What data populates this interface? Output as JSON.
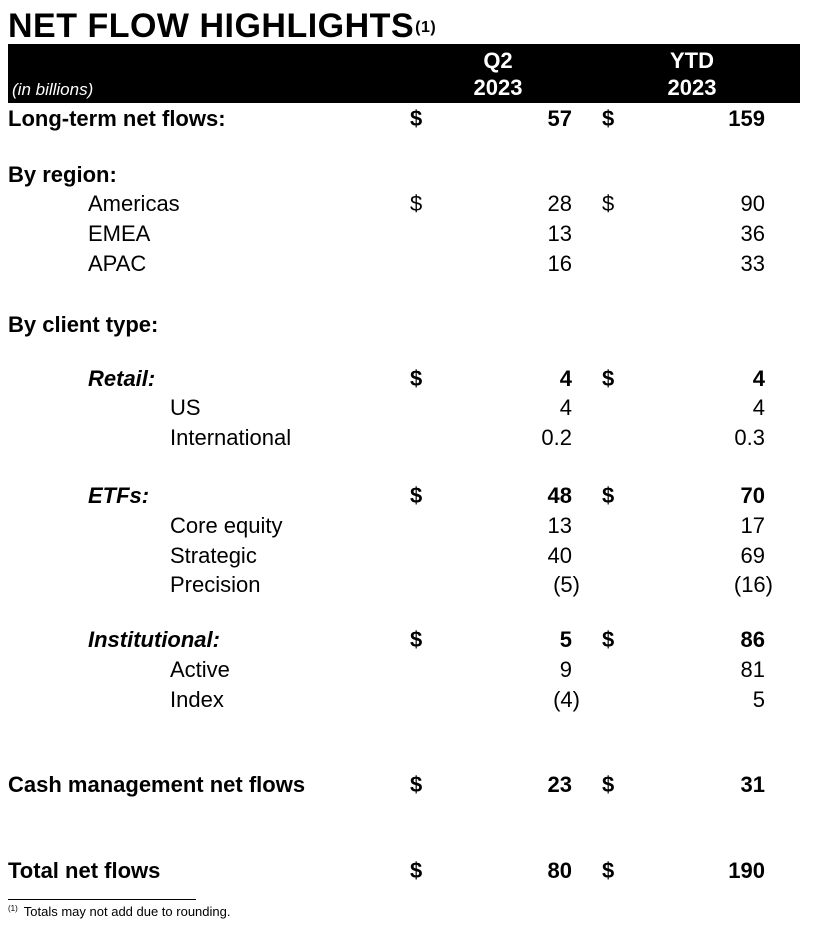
{
  "title": "NET FLOW HIGHLIGHTS",
  "title_footnote_mark": "(1)",
  "header": {
    "unit_label": "(in billions)",
    "col1_line1": "Q2",
    "col1_line2": "2023",
    "col2_line1": "YTD",
    "col2_line2": "2023"
  },
  "rows": {
    "long_term": {
      "label": "Long-term net flows:",
      "cur1": "$",
      "q2": "57",
      "cur2": "$",
      "ytd": "159"
    },
    "by_region": {
      "label": "By region:"
    },
    "americas": {
      "label": "Americas",
      "cur1": "$",
      "q2": "28",
      "cur2": "$",
      "ytd": "90"
    },
    "emea": {
      "label": "EMEA",
      "q2": "13",
      "ytd": "36"
    },
    "apac": {
      "label": "APAC",
      "q2": "16",
      "ytd": "33"
    },
    "by_client": {
      "label": "By client type:"
    },
    "retail": {
      "label": "Retail:",
      "cur1": "$",
      "q2": "4",
      "cur2": "$",
      "ytd": "4"
    },
    "us": {
      "label": "US",
      "q2": "4",
      "ytd": "4"
    },
    "international": {
      "label": "International",
      "q2": "0.2",
      "ytd": "0.3"
    },
    "etfs": {
      "label": "ETFs:",
      "cur1": "$",
      "q2": "48",
      "cur2": "$",
      "ytd": "70"
    },
    "core_equity": {
      "label": "Core equity",
      "q2": "13",
      "ytd": "17"
    },
    "strategic": {
      "label": "Strategic",
      "q2": "40",
      "ytd": "69"
    },
    "precision": {
      "label": "Precision",
      "q2": "(5)",
      "ytd": "(16)"
    },
    "institutional": {
      "label": "Institutional:",
      "cur1": "$",
      "q2": "5",
      "cur2": "$",
      "ytd": "86"
    },
    "active": {
      "label": "Active",
      "q2": "9",
      "ytd": "81"
    },
    "index": {
      "label": "Index",
      "q2": "(4)",
      "ytd": "5"
    },
    "cash": {
      "label": "Cash management net flows",
      "cur1": "$",
      "q2": "23",
      "cur2": "$",
      "ytd": "31"
    },
    "total": {
      "label": "Total net flows",
      "cur1": "$",
      "q2": "80",
      "cur2": "$",
      "ytd": "190"
    }
  },
  "footnote": {
    "mark": "(1)",
    "text": "Totals may not add due to rounding."
  }
}
